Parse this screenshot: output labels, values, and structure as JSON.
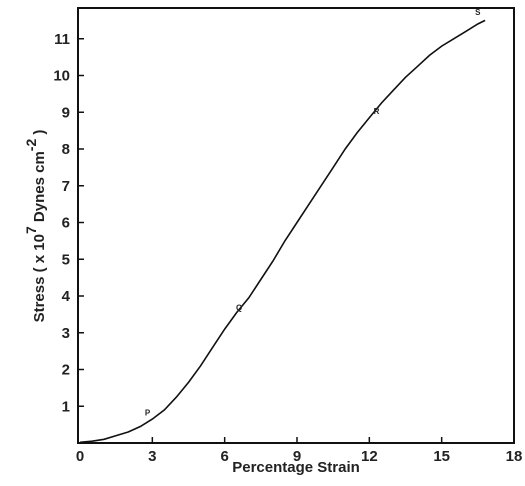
{
  "chart_data": {
    "type": "line",
    "xlabel": "Percentage Strain",
    "ylabel": {
      "prefix": "Stress ( x 10",
      "exp1": "7",
      "middle": " Dynes cm",
      "exp2": "-2",
      "suffix": " )"
    },
    "xlim": [
      0,
      18
    ],
    "ylim": [
      0,
      12
    ],
    "xticks": [
      0,
      3,
      6,
      9,
      12,
      15,
      18
    ],
    "yticks": [
      1,
      2,
      3,
      4,
      5,
      6,
      7,
      8,
      9,
      10,
      11
    ],
    "grid": false,
    "series": [
      {
        "x": [
          0,
          0.5,
          1,
          1.5,
          2,
          2.5,
          3,
          3.5,
          4,
          4.5,
          5,
          5.5,
          6,
          6.5,
          7,
          7.5,
          8,
          8.5,
          9,
          9.5,
          10,
          10.5,
          11,
          11.5,
          12,
          12.5,
          13,
          13.5,
          14,
          14.5,
          15,
          15.5,
          16,
          16.5,
          16.8
        ],
        "y": [
          0.02,
          0.05,
          0.1,
          0.2,
          0.3,
          0.45,
          0.65,
          0.9,
          1.25,
          1.65,
          2.1,
          2.6,
          3.1,
          3.55,
          3.95,
          4.45,
          4.95,
          5.5,
          6.0,
          6.5,
          7.0,
          7.5,
          8.0,
          8.45,
          8.85,
          9.25,
          9.6,
          9.95,
          10.25,
          10.55,
          10.8,
          11.0,
          11.2,
          11.4,
          11.5
        ]
      }
    ],
    "annotations": [
      {
        "text": "P",
        "x": 2.8,
        "y": 0.75
      },
      {
        "text": "Q",
        "x": 6.6,
        "y": 3.6
      },
      {
        "text": "R",
        "x": 12.3,
        "y": 8.95
      },
      {
        "text": "S",
        "x": 16.5,
        "y": 11.65
      }
    ]
  }
}
